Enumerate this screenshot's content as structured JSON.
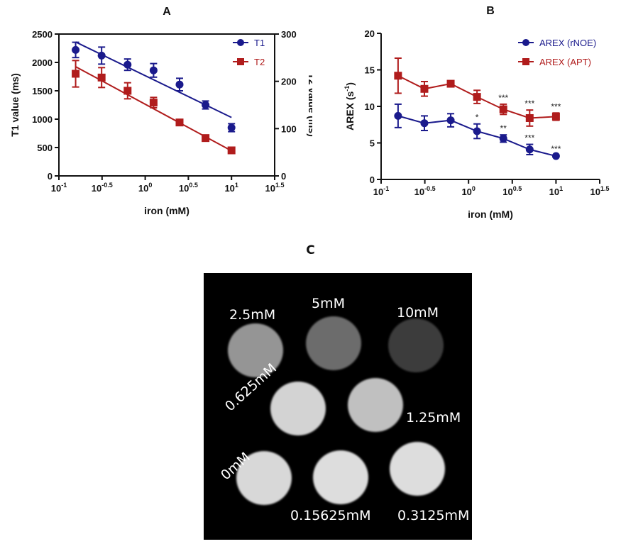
{
  "chart_data": [
    {
      "panel": "A",
      "type": "line",
      "title": "A",
      "xlabel": "iron (mM)",
      "ylabel": "T1 value (ms)",
      "ylabel_right": "T2 value (ms)",
      "xscale": "log10",
      "xlim_log10": [
        -1,
        1.5
      ],
      "xticks": [
        {
          "exp": "-1"
        },
        {
          "exp": "-0.5"
        },
        {
          "exp": "0"
        },
        {
          "exp": "0.5"
        },
        {
          "exp": "1"
        },
        {
          "exp": "1.5"
        }
      ],
      "ylim": [
        0,
        2500
      ],
      "yticks": [
        "0",
        "500",
        "1000",
        "1500",
        "2000",
        "2500"
      ],
      "ylim_right": [
        0,
        300
      ],
      "yticks_right": [
        "0",
        "100",
        "200",
        "300"
      ],
      "x": [
        0.15625,
        0.3125,
        0.625,
        1.25,
        2.5,
        5,
        10
      ],
      "legend_position": "top-right",
      "series": [
        {
          "name": "T1",
          "axis": "left",
          "marker": "circle",
          "color": "#1a1a8c",
          "values": [
            2220,
            2120,
            1960,
            1860,
            1610,
            1250,
            850
          ],
          "errors": [
            135,
            150,
            100,
            120,
            110,
            70,
            70
          ],
          "fit": "linear-log",
          "fit_endpoints": [
            2360,
            1030
          ]
        },
        {
          "name": "T2",
          "axis": "right",
          "marker": "square",
          "color": "#b01c1c",
          "values": [
            216,
            208,
            180,
            155,
            113,
            80,
            54
          ],
          "errors": [
            28,
            21,
            17,
            11,
            6,
            6,
            3
          ],
          "fit": "linear-log",
          "fit_endpoints": [
            231,
            53
          ]
        }
      ]
    },
    {
      "panel": "B",
      "type": "line",
      "title": "B",
      "xlabel": "iron (mM)",
      "ylabel": "AREX (s-1)",
      "ylabel_base": "AREX (s",
      "ylabel_sup": "-1",
      "ylabel_end": ")",
      "xscale": "log10",
      "xlim_log10": [
        -1,
        1.5
      ],
      "xticks": [
        {
          "exp": "-1"
        },
        {
          "exp": "-0.5"
        },
        {
          "exp": "0"
        },
        {
          "exp": "0.5"
        },
        {
          "exp": "1"
        },
        {
          "exp": "1.5"
        }
      ],
      "ylim": [
        0,
        20
      ],
      "yticks": [
        "0",
        "5",
        "10",
        "15",
        "20"
      ],
      "x": [
        0.15625,
        0.3125,
        0.625,
        1.25,
        2.5,
        5,
        10
      ],
      "legend_position": "top-right",
      "series": [
        {
          "name": "AREX (rNOE)",
          "marker": "circle",
          "color": "#1a1a8c",
          "values": [
            8.7,
            7.7,
            8.1,
            6.6,
            5.6,
            4.1,
            3.2
          ],
          "errors": [
            1.6,
            1.0,
            0.9,
            1.0,
            0.5,
            0.7,
            0.1
          ],
          "significance": [
            "",
            "",
            "",
            "*",
            "**",
            "***",
            "***"
          ]
        },
        {
          "name": "AREX (APT)",
          "marker": "square",
          "color": "#b01c1c",
          "values": [
            14.2,
            12.4,
            13.1,
            11.3,
            9.6,
            8.4,
            8.6
          ],
          "errors": [
            2.4,
            1.0,
            0.3,
            0.9,
            0.7,
            1.1,
            0.5
          ],
          "significance": [
            "",
            "",
            "",
            "",
            "***",
            "***",
            "***"
          ]
        }
      ]
    }
  ],
  "panelC": {
    "title": "C",
    "vials": [
      {
        "label": "2.5mM",
        "brightness": 0.62
      },
      {
        "label": "5mM",
        "brightness": 0.45
      },
      {
        "label": "10mM",
        "brightness": 0.25
      },
      {
        "label": "0.625mM",
        "brightness": 0.88
      },
      {
        "label": "1.25mM",
        "brightness": 0.8
      },
      {
        "label": "0mM",
        "brightness": 0.9
      },
      {
        "label": "0.15625mM",
        "brightness": 0.92
      },
      {
        "label": "0.3125mM",
        "brightness": 0.92
      }
    ]
  }
}
